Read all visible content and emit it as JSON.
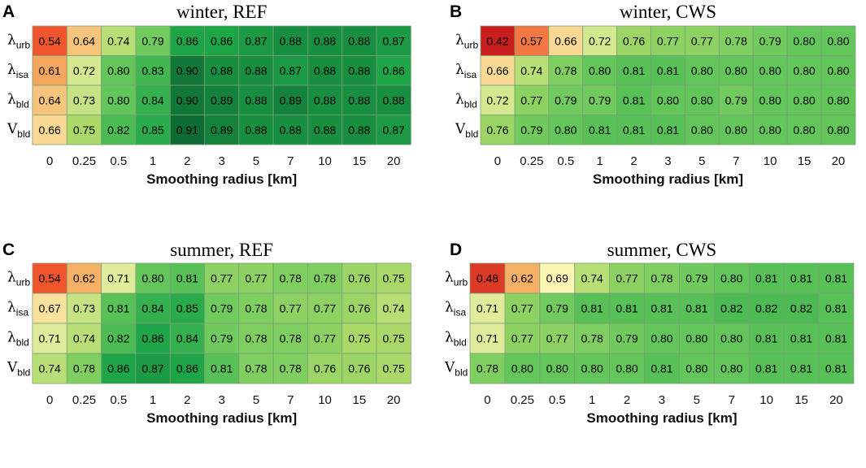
{
  "chart_data": [
    {
      "type": "heatmap",
      "panel": "A",
      "title": "winter, REF",
      "xlabel": "Smoothing radius [km]",
      "categories": [
        "0",
        "0.25",
        "0.5",
        "1",
        "2",
        "3",
        "5",
        "7",
        "10",
        "15",
        "20"
      ],
      "rows": [
        {
          "label": "λ",
          "sub": "urb",
          "values": [
            0.54,
            0.64,
            0.74,
            0.79,
            0.86,
            0.86,
            0.87,
            0.88,
            0.88,
            0.88,
            0.87
          ]
        },
        {
          "label": "λ",
          "sub": "isa",
          "values": [
            0.61,
            0.72,
            0.8,
            0.83,
            0.9,
            0.88,
            0.88,
            0.87,
            0.88,
            0.88,
            0.86
          ]
        },
        {
          "label": "λ",
          "sub": "bld",
          "values": [
            0.64,
            0.73,
            0.8,
            0.84,
            0.9,
            0.89,
            0.88,
            0.89,
            0.88,
            0.88,
            0.88
          ]
        },
        {
          "label": "V",
          "sub": "bld",
          "values": [
            0.66,
            0.75,
            0.82,
            0.85,
            0.91,
            0.89,
            0.88,
            0.88,
            0.88,
            0.88,
            0.87
          ]
        }
      ]
    },
    {
      "type": "heatmap",
      "panel": "B",
      "title": "winter, CWS",
      "xlabel": "Smoothing radius [km]",
      "categories": [
        "0",
        "0.25",
        "0.5",
        "1",
        "2",
        "3",
        "5",
        "7",
        "10",
        "15",
        "20"
      ],
      "rows": [
        {
          "label": "λ",
          "sub": "urb",
          "values": [
            0.42,
            0.57,
            0.66,
            0.72,
            0.76,
            0.77,
            0.77,
            0.78,
            0.79,
            0.8,
            0.8
          ]
        },
        {
          "label": "λ",
          "sub": "isa",
          "values": [
            0.66,
            0.74,
            0.78,
            0.8,
            0.81,
            0.81,
            0.8,
            0.8,
            0.8,
            0.8,
            0.8
          ]
        },
        {
          "label": "λ",
          "sub": "bld",
          "values": [
            0.72,
            0.77,
            0.79,
            0.79,
            0.81,
            0.8,
            0.8,
            0.79,
            0.8,
            0.8,
            0.8
          ]
        },
        {
          "label": "V",
          "sub": "bld",
          "values": [
            0.76,
            0.79,
            0.8,
            0.81,
            0.81,
            0.81,
            0.8,
            0.8,
            0.8,
            0.8,
            0.8
          ]
        }
      ]
    },
    {
      "type": "heatmap",
      "panel": "C",
      "title": "summer, REF",
      "xlabel": "Smoothing radius [km]",
      "categories": [
        "0",
        "0.25",
        "0.5",
        "1",
        "2",
        "3",
        "5",
        "7",
        "10",
        "15",
        "20"
      ],
      "rows": [
        {
          "label": "λ",
          "sub": "urb",
          "values": [
            0.54,
            0.62,
            0.71,
            0.8,
            0.81,
            0.77,
            0.77,
            0.78,
            0.78,
            0.76,
            0.75
          ]
        },
        {
          "label": "λ",
          "sub": "isa",
          "values": [
            0.67,
            0.73,
            0.81,
            0.84,
            0.85,
            0.79,
            0.78,
            0.77,
            0.77,
            0.76,
            0.74
          ]
        },
        {
          "label": "λ",
          "sub": "bld",
          "values": [
            0.71,
            0.74,
            0.82,
            0.86,
            0.84,
            0.79,
            0.78,
            0.78,
            0.77,
            0.75,
            0.75
          ]
        },
        {
          "label": "V",
          "sub": "bld",
          "values": [
            0.74,
            0.78,
            0.86,
            0.87,
            0.86,
            0.81,
            0.78,
            0.78,
            0.76,
            0.76,
            0.75
          ]
        }
      ]
    },
    {
      "type": "heatmap",
      "panel": "D",
      "title": "summer, CWS",
      "xlabel": "Smoothing radius [km]",
      "categories": [
        "0",
        "0.25",
        "0.5",
        "1",
        "2",
        "3",
        "5",
        "7",
        "10",
        "15",
        "20"
      ],
      "rows": [
        {
          "label": "λ",
          "sub": "urb",
          "values": [
            0.48,
            0.62,
            0.69,
            0.74,
            0.77,
            0.78,
            0.79,
            0.8,
            0.81,
            0.81,
            0.81
          ]
        },
        {
          "label": "λ",
          "sub": "isa",
          "values": [
            0.71,
            0.77,
            0.79,
            0.81,
            0.81,
            0.81,
            0.81,
            0.82,
            0.82,
            0.82,
            0.81
          ]
        },
        {
          "label": "λ",
          "sub": "bld",
          "values": [
            0.71,
            0.77,
            0.77,
            0.78,
            0.79,
            0.8,
            0.8,
            0.8,
            0.81,
            0.81,
            0.81
          ]
        },
        {
          "label": "V",
          "sub": "bld",
          "values": [
            0.78,
            0.8,
            0.8,
            0.8,
            0.8,
            0.81,
            0.8,
            0.8,
            0.81,
            0.81,
            0.81
          ]
        }
      ]
    }
  ],
  "colorscale": {
    "stops": [
      {
        "v": 0.42,
        "color": "#c81e1e"
      },
      {
        "v": 0.54,
        "color": "#f0552d"
      },
      {
        "v": 0.62,
        "color": "#f5b065"
      },
      {
        "v": 0.69,
        "color": "#fbf6b4"
      },
      {
        "v": 0.75,
        "color": "#aad969"
      },
      {
        "v": 0.8,
        "color": "#63c65a"
      },
      {
        "v": 0.86,
        "color": "#1ea548"
      },
      {
        "v": 0.91,
        "color": "#0d6b34"
      }
    ],
    "grid_color": "#7a9f76"
  }
}
